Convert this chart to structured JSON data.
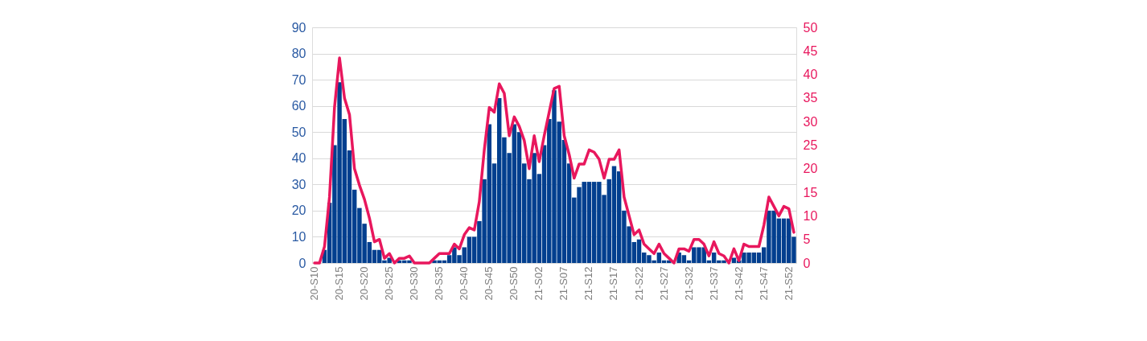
{
  "chart_data": {
    "type": "bar",
    "categories": [
      "20-S10",
      null,
      null,
      null,
      null,
      "20-S15",
      null,
      null,
      null,
      null,
      "20-S20",
      null,
      null,
      null,
      null,
      "20-S25",
      null,
      null,
      null,
      null,
      "20-S30",
      null,
      null,
      null,
      null,
      "20-S35",
      null,
      null,
      null,
      null,
      "20-S40",
      null,
      null,
      null,
      null,
      "20-S45",
      null,
      null,
      null,
      null,
      "20-S50",
      null,
      null,
      null,
      null,
      "21-S02",
      null,
      null,
      null,
      null,
      "21-S07",
      null,
      null,
      null,
      null,
      "21-S12",
      null,
      null,
      null,
      null,
      "21-S17",
      null,
      null,
      null,
      null,
      "21-S22",
      null,
      null,
      null,
      null,
      "21-S27",
      null,
      null,
      null,
      null,
      "21-S32",
      null,
      null,
      null,
      null,
      "21-S37",
      null,
      null,
      null,
      null,
      "21-S42",
      null,
      null,
      null,
      null,
      "21-S47",
      null,
      null,
      null,
      null,
      "21-S52",
      null
    ],
    "series": [
      {
        "color": "#023f8f",
        "values": [
          0,
          0,
          5,
          23,
          45,
          69,
          55,
          43,
          28,
          21,
          15,
          8,
          5,
          5,
          1,
          2,
          null,
          1,
          1,
          1,
          0,
          0,
          0,
          0,
          1,
          1,
          1,
          3,
          6,
          3,
          6,
          10,
          10,
          16,
          32,
          53,
          38,
          63,
          48,
          42,
          53,
          50,
          38,
          32,
          42,
          34,
          45,
          55,
          66,
          54,
          47,
          38,
          25,
          29,
          31,
          31,
          31,
          31,
          26,
          32,
          37,
          35,
          20,
          14,
          8,
          9,
          4,
          3,
          1,
          4,
          1,
          1,
          0,
          4,
          3,
          1,
          6,
          6,
          6,
          1,
          4,
          1,
          1,
          0,
          2,
          1,
          4,
          4,
          4,
          4,
          6,
          20,
          20,
          17,
          17,
          17,
          10
        ]
      },
      {
        "type": "line",
        "axis": "y2",
        "color": "#e8175d",
        "values": [
          0,
          0,
          3.5,
          14,
          33,
          43.5,
          35,
          31.5,
          20,
          16.5,
          13.5,
          9.5,
          4.5,
          5,
          1,
          2,
          0,
          1,
          1,
          1.5,
          0,
          0,
          0,
          0,
          1,
          2,
          2,
          2,
          4,
          3,
          6,
          7.5,
          7,
          13,
          24,
          33,
          32,
          38,
          36,
          27,
          31,
          29,
          26,
          20,
          27,
          21.5,
          27,
          32,
          37,
          37.5,
          27,
          23,
          18,
          21,
          21,
          24,
          23.5,
          22,
          18,
          22,
          22,
          24,
          14,
          10,
          6,
          7,
          4,
          3,
          2,
          4,
          2,
          1,
          0,
          3,
          3,
          2.5,
          5,
          5,
          4,
          1.5,
          4.5,
          2,
          1.5,
          0,
          3,
          0.5,
          4,
          3.5,
          3.5,
          3.5,
          8,
          14,
          12,
          10,
          12,
          11.5,
          6.5
        ]
      }
    ],
    "ylim": [
      0,
      90
    ],
    "yticks": [
      0,
      10,
      20,
      30,
      40,
      50,
      60,
      70,
      80,
      90
    ],
    "y2lim": [
      0,
      50
    ],
    "y2ticks": [
      0,
      5,
      10,
      15,
      20,
      25,
      30,
      35,
      40,
      45,
      50
    ],
    "grid": "y",
    "line_style": "solid",
    "marker": "none"
  }
}
